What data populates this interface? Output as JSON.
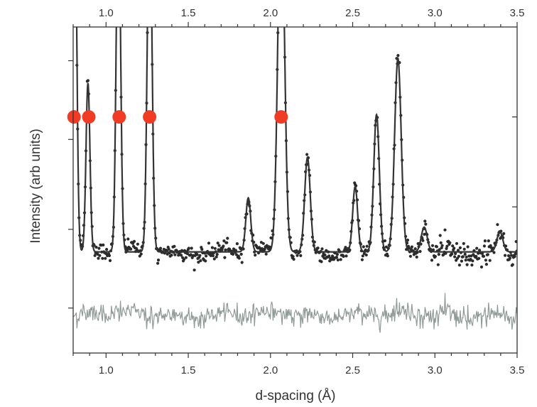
{
  "chart_data": {
    "type": "scatter",
    "title": "",
    "xlabel": "d-spacing (Å)",
    "ylabel": "Intensity (arb units)",
    "xlim": [
      0.8,
      3.5
    ],
    "ylim": [
      -0.45,
      1.0
    ],
    "x_ticks": [
      "1.0",
      "1.5",
      "2.0",
      "2.5",
      "3.0",
      "3.5"
    ],
    "x_tick_values": [
      1.0,
      1.5,
      2.0,
      2.5,
      3.0,
      3.5
    ],
    "y_tick_labels_shown": false,
    "grid": false,
    "mirror_axes": true,
    "baseline": 0.0,
    "difference_offset": -0.28,
    "peaks": [
      {
        "d": 0.81,
        "height": 1.6,
        "width": 0.012
      },
      {
        "d": 0.89,
        "height": 0.75,
        "width": 0.012
      },
      {
        "d": 1.075,
        "height": 1.6,
        "width": 0.013
      },
      {
        "d": 1.265,
        "height": 1.6,
        "width": 0.014
      },
      {
        "d": 1.865,
        "height": 0.24,
        "width": 0.015
      },
      {
        "d": 2.065,
        "height": 1.6,
        "width": 0.02
      },
      {
        "d": 2.225,
        "height": 0.42,
        "width": 0.017
      },
      {
        "d": 2.515,
        "height": 0.29,
        "width": 0.015
      },
      {
        "d": 2.645,
        "height": 0.61,
        "width": 0.017
      },
      {
        "d": 2.775,
        "height": 0.86,
        "width": 0.02
      },
      {
        "d": 2.935,
        "height": 0.11,
        "width": 0.018
      },
      {
        "d": 3.395,
        "height": 0.09,
        "width": 0.018
      }
    ],
    "series": [
      {
        "style": "points",
        "color": "#2b2b2b",
        "type": "scatter"
      },
      {
        "style": "line",
        "color": "#333333",
        "type": "line"
      },
      {
        "style": "line",
        "color": "#909a96",
        "type": "line"
      }
    ],
    "markers": {
      "color": "#f03c24",
      "d": [
        0.805,
        0.895,
        1.08,
        1.265,
        2.065
      ],
      "y": 0.6
    }
  }
}
